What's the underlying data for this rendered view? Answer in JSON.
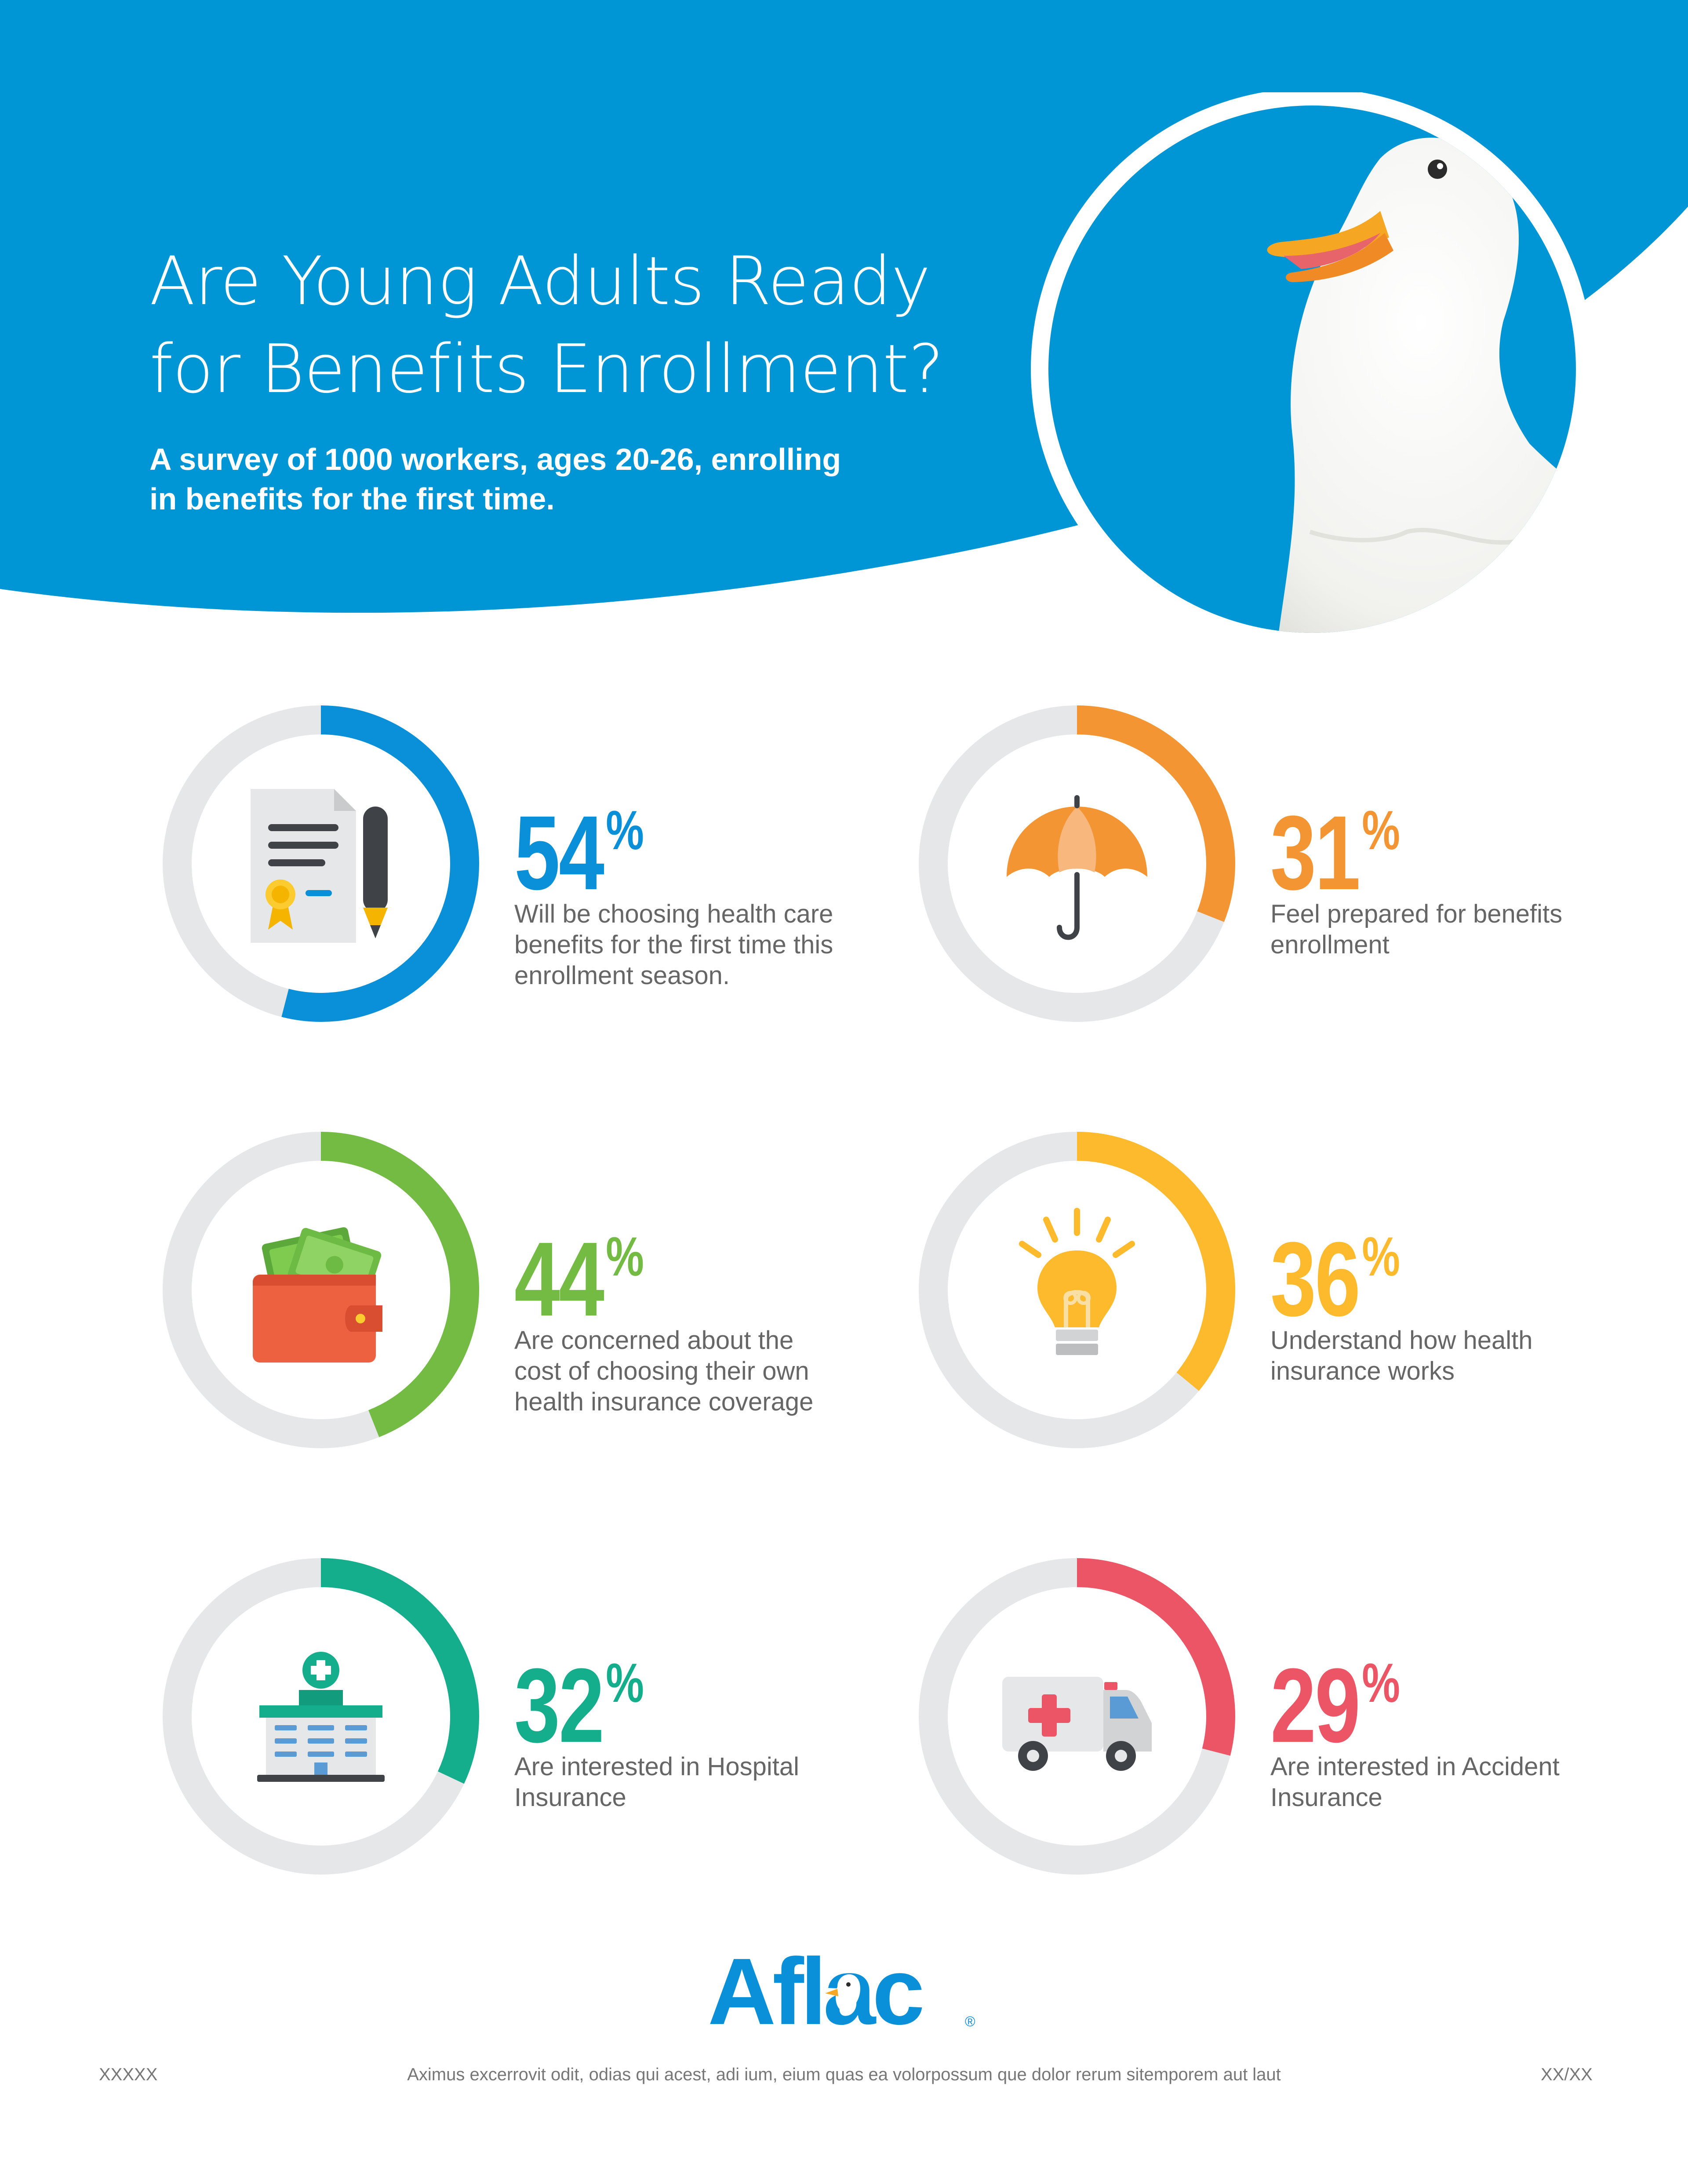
{
  "header": {
    "title_lines": [
      "Are Young Adults Ready",
      "for Benefits Enrollment?"
    ],
    "subtitle_lines": [
      "A survey of 1000 workers, ages 20-26, enrolling",
      "in benefits for the first time."
    ],
    "background_color": "#0096D6",
    "photo": "duck-mascot"
  },
  "chart_data": {
    "type": "donut",
    "track_color": "#E6E7E8",
    "items": [
      {
        "value": 54,
        "value_label": "54",
        "unit": "%",
        "color": "#0A8FD9",
        "icon": "certificate-pen-icon",
        "description_lines": [
          "Will be choosing health care",
          "benefits for the first time this",
          "enrollment season."
        ]
      },
      {
        "value": 31,
        "value_label": "31",
        "unit": "%",
        "color": "#F39533",
        "icon": "umbrella-icon",
        "description_lines": [
          "Feel prepared for benefits",
          "enrollment"
        ]
      },
      {
        "value": 44,
        "value_label": "44",
        "unit": "%",
        "color": "#74BB44",
        "icon": "wallet-icon",
        "description_lines": [
          "Are concerned about the",
          "cost of choosing their own",
          "health insurance coverage"
        ]
      },
      {
        "value": 36,
        "value_label": "36",
        "unit": "%",
        "color": "#FDBA2C",
        "icon": "lightbulb-icon",
        "description_lines": [
          "Understand how health",
          "insurance works"
        ]
      },
      {
        "value": 32,
        "value_label": "32",
        "unit": "%",
        "color": "#15AE8C",
        "icon": "hospital-icon",
        "description_lines": [
          "Are interested in Hospital",
          "Insurance"
        ]
      },
      {
        "value": 29,
        "value_label": "29",
        "unit": "%",
        "color": "#EC5565",
        "icon": "ambulance-icon",
        "description_lines": [
          "Are interested in Accident",
          "Insurance"
        ]
      }
    ]
  },
  "footer": {
    "logo_text": "Aflac",
    "logo_color": "#0A8FD9",
    "left_code": "XXXXX",
    "disclaimer": "Aximus excerrovit odit, odias qui acest, adi ium, eium quas ea volorpossum que dolor rerum sitemporem aut laut",
    "right_code": "XX/XX"
  }
}
